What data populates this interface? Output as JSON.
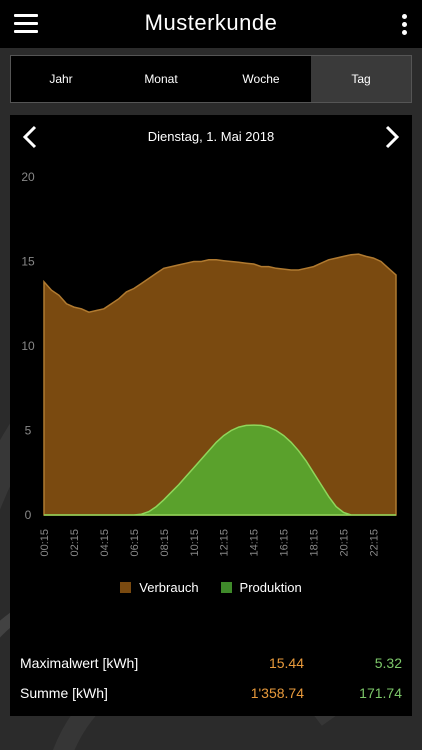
{
  "header": {
    "title": "Musterkunde",
    "menu_icon": "hamburger-menu-icon",
    "more_icon": "more-vertical-icon"
  },
  "tabs": [
    {
      "label": "Jahr",
      "active": false
    },
    {
      "label": "Monat",
      "active": false
    },
    {
      "label": "Woche",
      "active": false
    },
    {
      "label": "Tag",
      "active": true
    }
  ],
  "date_nav": {
    "label": "Dienstag, 1. Mai 2018",
    "prev_icon": "chevron-left-icon",
    "next_icon": "chevron-right-icon"
  },
  "chart_data": {
    "type": "area",
    "ylim": [
      0,
      20
    ],
    "yticks": [
      "0",
      "5",
      "10",
      "15",
      "20"
    ],
    "xlim": [
      0.25,
      23.75
    ],
    "xticks": [
      "00:15",
      "02:15",
      "04:15",
      "06:15",
      "08:15",
      "10:15",
      "12:15",
      "14:15",
      "16:15",
      "18:15",
      "20:15",
      "22:15"
    ],
    "grid": false,
    "legend": "bottom",
    "series": [
      {
        "name": "Verbrauch",
        "color": "#7a4a10",
        "x": [
          0.25,
          0.75,
          1.25,
          1.75,
          2.25,
          2.75,
          3.25,
          3.75,
          4.25,
          4.75,
          5.25,
          5.75,
          6.25,
          6.75,
          7.25,
          7.75,
          8.25,
          8.75,
          9.25,
          9.75,
          10.25,
          10.75,
          11.25,
          11.75,
          12.25,
          12.75,
          13.25,
          13.75,
          14.25,
          14.75,
          15.25,
          15.75,
          16.25,
          16.75,
          17.25,
          17.75,
          18.25,
          18.75,
          19.25,
          19.75,
          20.25,
          20.75,
          21.25,
          21.75,
          22.25,
          22.75,
          23.25,
          23.75
        ],
        "values": [
          13.8,
          13.3,
          13.0,
          12.5,
          12.3,
          12.2,
          12.0,
          12.1,
          12.2,
          12.5,
          12.8,
          13.2,
          13.4,
          13.7,
          14.0,
          14.3,
          14.6,
          14.7,
          14.8,
          14.9,
          15.0,
          15.0,
          15.1,
          15.1,
          15.05,
          15.0,
          14.95,
          14.9,
          14.85,
          14.7,
          14.7,
          14.6,
          14.55,
          14.5,
          14.5,
          14.6,
          14.7,
          14.9,
          15.1,
          15.2,
          15.3,
          15.4,
          15.44,
          15.3,
          15.2,
          15.0,
          14.6,
          14.2
        ]
      },
      {
        "name": "Produktion",
        "color": "#6db33f",
        "x": [
          0.25,
          6.25,
          6.75,
          7.25,
          7.75,
          8.25,
          8.75,
          9.25,
          9.75,
          10.25,
          10.75,
          11.25,
          11.75,
          12.25,
          12.75,
          13.25,
          13.75,
          14.25,
          14.75,
          15.25,
          15.75,
          16.25,
          16.75,
          17.25,
          17.75,
          18.25,
          18.75,
          19.25,
          19.75,
          20.25,
          20.75,
          23.75
        ],
        "values": [
          0,
          0,
          0.05,
          0.2,
          0.5,
          0.9,
          1.35,
          1.8,
          2.3,
          2.8,
          3.3,
          3.8,
          4.3,
          4.7,
          5.0,
          5.2,
          5.3,
          5.32,
          5.3,
          5.2,
          5.0,
          4.7,
          4.3,
          3.8,
          3.2,
          2.5,
          1.8,
          1.1,
          0.5,
          0.15,
          0,
          0
        ]
      }
    ]
  },
  "summary": {
    "max": {
      "label": "Maximalwert [kWh]",
      "verbrauch": "15.44",
      "produktion": "5.32"
    },
    "sum": {
      "label": "Summe [kWh]",
      "verbrauch": "1'358.74",
      "produktion": "171.74"
    }
  },
  "colors": {
    "accent_orange": "#e89a3c",
    "accent_green": "#7dc76a",
    "panel": "#000000",
    "active_tab": "#3a3a3a"
  }
}
